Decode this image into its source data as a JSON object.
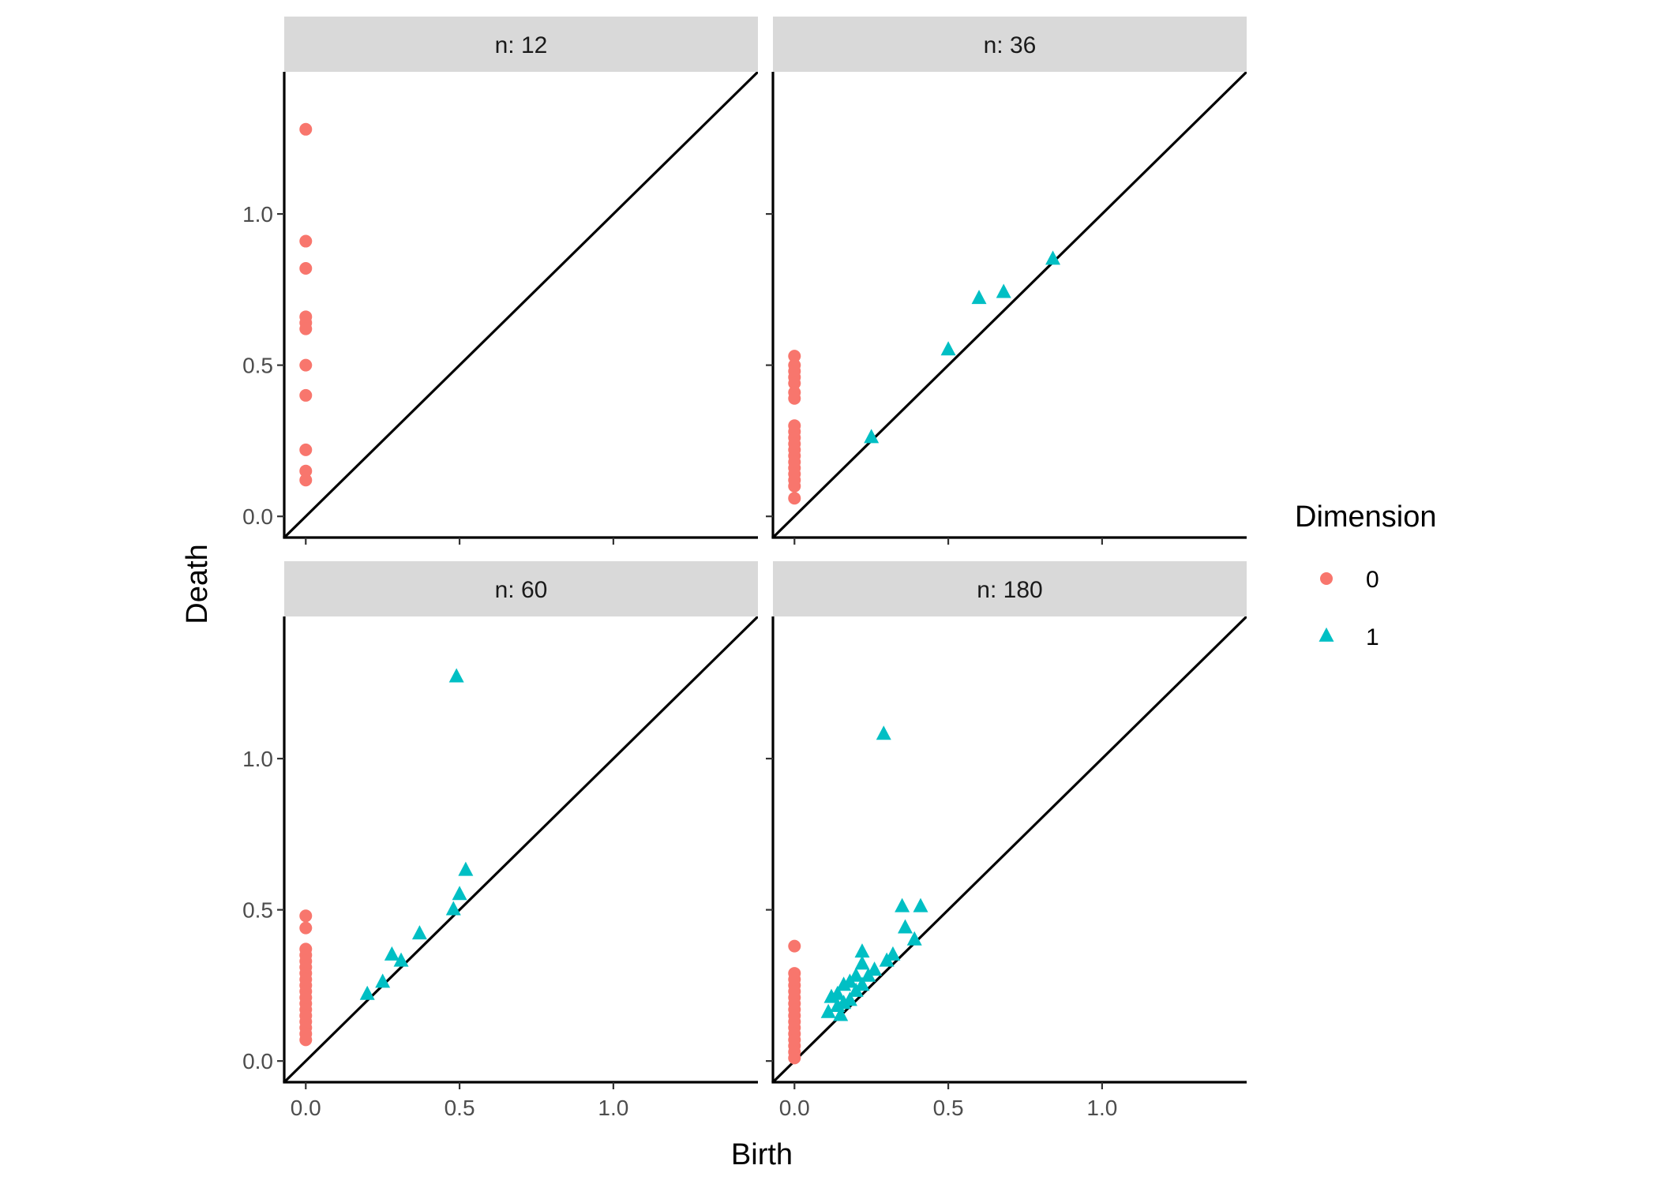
{
  "chart_data": {
    "type": "scatter",
    "title": "",
    "xlabel": "Birth",
    "ylabel": "Death",
    "xlim": [
      -0.07,
      1.47
    ],
    "ylim": [
      -0.07,
      1.47
    ],
    "x_ticks": [
      0.0,
      0.5,
      1.0
    ],
    "x_tick_labels": [
      "0.0",
      "0.5",
      "1.0"
    ],
    "y_ticks": [
      0.0,
      0.5,
      1.0
    ],
    "y_tick_labels": [
      "0.0",
      "0.5",
      "1.0"
    ],
    "diagonal": "y = x",
    "grid": false,
    "legend": {
      "title": "Dimension",
      "placement": "right",
      "entries": [
        {
          "label": "0",
          "shape": "circle",
          "color": "#F8766D"
        },
        {
          "label": "1",
          "shape": "triangle",
          "color": "#00BFC4"
        }
      ]
    },
    "panels": [
      {
        "label": "n: 12",
        "series": [
          {
            "name": "0",
            "points": [
              [
                0,
                1.28
              ],
              [
                0,
                0.91
              ],
              [
                0,
                0.82
              ],
              [
                0,
                0.66
              ],
              [
                0,
                0.64
              ],
              [
                0,
                0.62
              ],
              [
                0,
                0.5
              ],
              [
                0,
                0.4
              ],
              [
                0,
                0.22
              ],
              [
                0,
                0.15
              ],
              [
                0,
                0.12
              ]
            ]
          },
          {
            "name": "1",
            "points": []
          }
        ]
      },
      {
        "label": "n: 36",
        "series": [
          {
            "name": "0",
            "points": [
              [
                0,
                0.53
              ],
              [
                0,
                0.5
              ],
              [
                0,
                0.48
              ],
              [
                0,
                0.46
              ],
              [
                0,
                0.44
              ],
              [
                0,
                0.41
              ],
              [
                0,
                0.39
              ],
              [
                0,
                0.3
              ],
              [
                0,
                0.28
              ],
              [
                0,
                0.26
              ],
              [
                0,
                0.24
              ],
              [
                0,
                0.22
              ],
              [
                0,
                0.2
              ],
              [
                0,
                0.18
              ],
              [
                0,
                0.16
              ],
              [
                0,
                0.14
              ],
              [
                0,
                0.12
              ],
              [
                0,
                0.1
              ],
              [
                0,
                0.06
              ]
            ]
          },
          {
            "name": "1",
            "points": [
              [
                0.25,
                0.26
              ],
              [
                0.5,
                0.55
              ],
              [
                0.6,
                0.72
              ],
              [
                0.68,
                0.74
              ],
              [
                0.84,
                0.85
              ]
            ]
          }
        ]
      },
      {
        "label": "n: 60",
        "series": [
          {
            "name": "0",
            "points": [
              [
                0,
                0.48
              ],
              [
                0,
                0.44
              ],
              [
                0,
                0.37
              ],
              [
                0,
                0.35
              ],
              [
                0,
                0.33
              ],
              [
                0,
                0.31
              ],
              [
                0,
                0.29
              ],
              [
                0,
                0.27
              ],
              [
                0,
                0.25
              ],
              [
                0,
                0.23
              ],
              [
                0,
                0.21
              ],
              [
                0,
                0.19
              ],
              [
                0,
                0.17
              ],
              [
                0,
                0.15
              ],
              [
                0,
                0.13
              ],
              [
                0,
                0.11
              ],
              [
                0,
                0.09
              ],
              [
                0,
                0.07
              ]
            ]
          },
          {
            "name": "1",
            "points": [
              [
                0.49,
                1.27
              ],
              [
                0.52,
                0.63
              ],
              [
                0.5,
                0.55
              ],
              [
                0.48,
                0.5
              ],
              [
                0.37,
                0.42
              ],
              [
                0.28,
                0.35
              ],
              [
                0.31,
                0.33
              ],
              [
                0.25,
                0.26
              ],
              [
                0.2,
                0.22
              ]
            ]
          }
        ]
      },
      {
        "label": "n: 180",
        "series": [
          {
            "name": "0",
            "points": [
              [
                0,
                0.38
              ],
              [
                0,
                0.29
              ],
              [
                0,
                0.27
              ],
              [
                0,
                0.25
              ],
              [
                0,
                0.23
              ],
              [
                0,
                0.21
              ],
              [
                0,
                0.19
              ],
              [
                0,
                0.17
              ],
              [
                0,
                0.15
              ],
              [
                0,
                0.13
              ],
              [
                0,
                0.11
              ],
              [
                0,
                0.09
              ],
              [
                0,
                0.07
              ],
              [
                0,
                0.05
              ],
              [
                0,
                0.03
              ],
              [
                0,
                0.01
              ]
            ]
          },
          {
            "name": "1",
            "points": [
              [
                0.29,
                1.08
              ],
              [
                0.35,
                0.51
              ],
              [
                0.41,
                0.51
              ],
              [
                0.36,
                0.44
              ],
              [
                0.39,
                0.4
              ],
              [
                0.22,
                0.36
              ],
              [
                0.32,
                0.35
              ],
              [
                0.3,
                0.33
              ],
              [
                0.22,
                0.32
              ],
              [
                0.26,
                0.3
              ],
              [
                0.24,
                0.28
              ],
              [
                0.2,
                0.28
              ],
              [
                0.18,
                0.26
              ],
              [
                0.16,
                0.25
              ],
              [
                0.22,
                0.25
              ],
              [
                0.14,
                0.22
              ],
              [
                0.12,
                0.21
              ],
              [
                0.2,
                0.23
              ],
              [
                0.18,
                0.2
              ],
              [
                0.16,
                0.19
              ],
              [
                0.14,
                0.18
              ],
              [
                0.11,
                0.16
              ],
              [
                0.15,
                0.15
              ]
            ]
          }
        ]
      }
    ]
  }
}
